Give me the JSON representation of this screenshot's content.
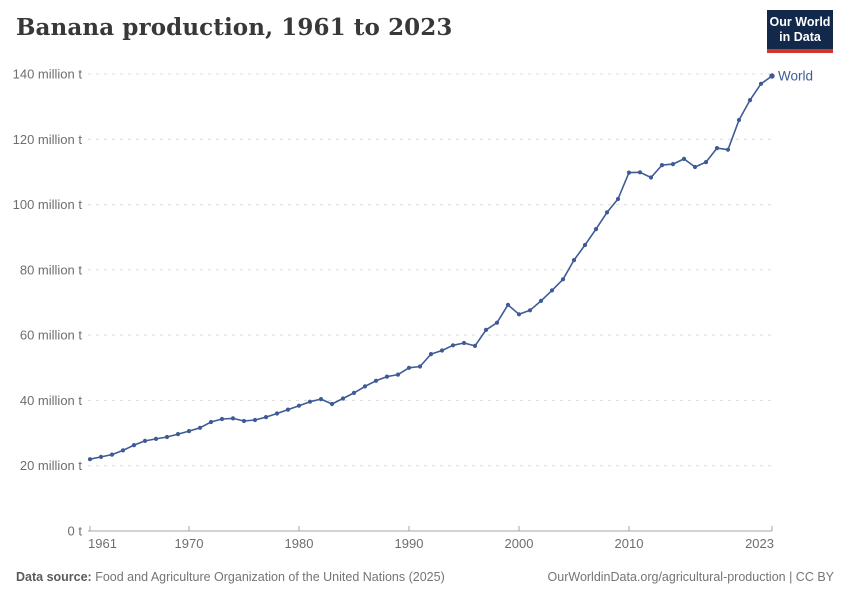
{
  "header": {
    "title": "Banana production, 1961 to 2023",
    "logo": {
      "line1": "Our World",
      "line2": "in Data"
    }
  },
  "chart_data": {
    "type": "line",
    "title": "Banana production, 1961 to 2023",
    "entity": "World",
    "unit": "t",
    "xlim": [
      1961,
      2023
    ],
    "ylim": [
      0,
      140
    ],
    "x_ticks": [
      1961,
      1970,
      1980,
      1990,
      2000,
      2010,
      2023
    ],
    "y_ticks": [
      0,
      20,
      40,
      60,
      80,
      100,
      120,
      140
    ],
    "y_tick_labels": [
      "0 t",
      "20 million t",
      "40 million t",
      "60 million t",
      "80 million t",
      "100 million t",
      "120 million t",
      "140 million t"
    ],
    "grid": "horizontal-dashed",
    "legend_position": "end-of-line-label",
    "years": [
      1961,
      1962,
      1963,
      1964,
      1965,
      1966,
      1967,
      1968,
      1969,
      1970,
      1971,
      1972,
      1973,
      1974,
      1975,
      1976,
      1977,
      1978,
      1979,
      1980,
      1981,
      1982,
      1983,
      1984,
      1985,
      1986,
      1987,
      1988,
      1989,
      1990,
      1991,
      1992,
      1993,
      1994,
      1995,
      1996,
      1997,
      1998,
      1999,
      2000,
      2001,
      2002,
      2003,
      2004,
      2005,
      2006,
      2007,
      2008,
      2009,
      2010,
      2011,
      2012,
      2013,
      2014,
      2015,
      2016,
      2017,
      2018,
      2019,
      2020,
      2021,
      2022,
      2023
    ],
    "values": [
      22.0,
      22.7,
      23.4,
      24.7,
      26.3,
      27.6,
      28.2,
      28.8,
      29.7,
      30.6,
      31.6,
      33.4,
      34.3,
      34.5,
      33.7,
      34.0,
      34.9,
      36.0,
      37.2,
      38.4,
      39.6,
      40.4,
      38.9,
      40.6,
      42.3,
      44.3,
      46.0,
      47.3,
      47.9,
      50.0,
      50.4,
      54.2,
      55.3,
      56.9,
      57.6,
      56.7,
      61.6,
      63.8,
      69.3,
      66.4,
      67.6,
      70.5,
      73.7,
      77.1,
      83.0,
      87.6,
      92.5,
      97.6,
      101.7,
      109.8,
      109.9,
      108.3,
      112.1,
      112.4,
      114.0,
      111.5,
      113.0,
      117.3,
      116.8,
      125.9,
      132.0,
      137.0,
      139.4
    ]
  },
  "footer": {
    "datasource_label": "Data source:",
    "datasource_text": "Food and Agriculture Organization of the United Nations (2025)",
    "attribution": "OurWorldinData.org/agricultural-production | CC BY"
  },
  "colors": {
    "line": "#3F5B96",
    "entity_label": "#3F5B96",
    "grid": "#DCDCDC",
    "axis": "#A5A5A5",
    "tick_label": "#6E6E6E",
    "title": "#383838",
    "footer_text": "#757575",
    "logo_background": "#12294B",
    "logo_accent": "#D0362C",
    "logo_text": "#FFFFFF"
  }
}
